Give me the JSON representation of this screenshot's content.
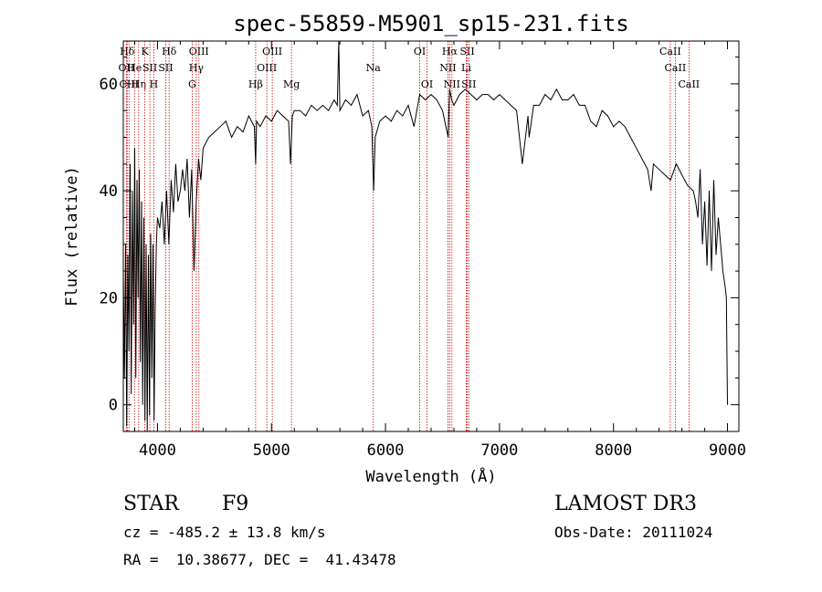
{
  "chart_data": {
    "type": "line",
    "title": "spec-55859-M5901_sp15-231.fits",
    "xlabel": "Wavelength (Å)",
    "ylabel": "Flux (relative)",
    "xlim": [
      3700,
      9100
    ],
    "ylim": [
      -5,
      68
    ],
    "xticks": [
      4000,
      5000,
      6000,
      7000,
      8000,
      9000
    ],
    "yticks": [
      0,
      20,
      40,
      60
    ],
    "series": [
      {
        "x": [
          3700,
          3710,
          3720,
          3730,
          3740,
          3750,
          3760,
          3770,
          3780,
          3790,
          3800,
          3810,
          3820,
          3830,
          3840,
          3850,
          3860,
          3870,
          3880,
          3890,
          3900,
          3910,
          3920,
          3930,
          3940,
          3950,
          3960,
          3970,
          3980,
          3990,
          4000,
          4020,
          4040,
          4060,
          4080,
          4100,
          4120,
          4140,
          4160,
          4180,
          4200,
          4220,
          4240,
          4260,
          4280,
          4300,
          4320,
          4340,
          4360,
          4380,
          4400,
          4450,
          4500,
          4550,
          4600,
          4650,
          4700,
          4750,
          4800,
          4850,
          4861,
          4870,
          4900,
          4950,
          5000,
          5050,
          5100,
          5150,
          5167,
          5183,
          5200,
          5250,
          5300,
          5350,
          5400,
          5450,
          5500,
          5550,
          5577,
          5590,
          5600,
          5650,
          5700,
          5750,
          5800,
          5850,
          5880,
          5890,
          5896,
          5910,
          5950,
          6000,
          6050,
          6100,
          6150,
          6200,
          6250,
          6300,
          6350,
          6400,
          6450,
          6500,
          6550,
          6563,
          6580,
          6600,
          6650,
          6700,
          6750,
          6800,
          6850,
          6900,
          6950,
          7000,
          7050,
          7100,
          7150,
          7200,
          7250,
          7260,
          7300,
          7350,
          7400,
          7450,
          7500,
          7550,
          7600,
          7650,
          7700,
          7750,
          7800,
          7850,
          7900,
          7950,
          8000,
          8050,
          8100,
          8150,
          8200,
          8250,
          8300,
          8330,
          8350,
          8400,
          8450,
          8500,
          8550,
          8600,
          8650,
          8700,
          8720,
          8740,
          8760,
          8780,
          8800,
          8820,
          8840,
          8860,
          8880,
          8900,
          8920,
          8940,
          8960,
          8980,
          8990,
          9000
        ],
        "y": [
          25,
          5,
          30,
          -4,
          28,
          10,
          45,
          2,
          40,
          15,
          48,
          5,
          42,
          20,
          44,
          8,
          38,
          0,
          35,
          -3,
          30,
          -5,
          28,
          -2,
          32,
          5,
          30,
          -3,
          18,
          30,
          35,
          33,
          38,
          30,
          40,
          30,
          42,
          36,
          45,
          38,
          40,
          44,
          40,
          46,
          35,
          44,
          25,
          38,
          46,
          42,
          48,
          50,
          51,
          52,
          53,
          50,
          52,
          51,
          54,
          52,
          45,
          53,
          52,
          54,
          53,
          55,
          54,
          53,
          45,
          54,
          55,
          55,
          54,
          56,
          55,
          56,
          55,
          57,
          56,
          68,
          55,
          57,
          56,
          58,
          54,
          55,
          52,
          45,
          40,
          50,
          53,
          54,
          53,
          55,
          54,
          56,
          52,
          58,
          57,
          58,
          57,
          55,
          50,
          59,
          57,
          56,
          58,
          59,
          58,
          57,
          58,
          58,
          57,
          58,
          57,
          56,
          55,
          45,
          54,
          50,
          56,
          56,
          58,
          57,
          59,
          57,
          57,
          58,
          56,
          56,
          53,
          52,
          55,
          54,
          52,
          53,
          52,
          50,
          48,
          46,
          44,
          40,
          45,
          44,
          43,
          42,
          45,
          43,
          41,
          40,
          38,
          35,
          44,
          30,
          38,
          26,
          40,
          25,
          42,
          28,
          35,
          30,
          25,
          22,
          20,
          0
        ]
      }
    ],
    "line_markers": [
      {
        "label": "Hδ",
        "x": 3734,
        "row": 0
      },
      {
        "label": "OII",
        "x": 3727,
        "row": 1
      },
      {
        "label": "CIII",
        "x": 3750,
        "row": 2
      },
      {
        "label": "He",
        "x": 3798,
        "row": 1
      },
      {
        "label": "Hη",
        "x": 3835,
        "row": 2
      },
      {
        "label": "K",
        "x": 3889,
        "row": 0
      },
      {
        "label": "SII",
        "x": 3933,
        "row": 1
      },
      {
        "label": "H",
        "x": 3968,
        "row": 2
      },
      {
        "label": "Hδ",
        "x": 4102,
        "row": 0
      },
      {
        "label": "SII",
        "x": 4072,
        "row": 1
      },
      {
        "label": "OIII",
        "x": 4363,
        "row": 0
      },
      {
        "label": "Hγ",
        "x": 4340,
        "row": 1
      },
      {
        "label": "G",
        "x": 4304,
        "row": 2
      },
      {
        "label": "Hβ",
        "x": 4861,
        "row": 2
      },
      {
        "label": "OIII",
        "x": 5007,
        "row": 0
      },
      {
        "label": "OIII",
        "x": 4959,
        "row": 1
      },
      {
        "label": "Mg",
        "x": 5175,
        "row": 2
      },
      {
        "label": "Na",
        "x": 5893,
        "row": 1
      },
      {
        "label": "OI",
        "x": 6300,
        "row": 0
      },
      {
        "label": "OI",
        "x": 6364,
        "row": 2
      },
      {
        "label": "Hα",
        "x": 6563,
        "row": 0
      },
      {
        "label": "NII",
        "x": 6548,
        "row": 1
      },
      {
        "label": "NII",
        "x": 6583,
        "row": 2
      },
      {
        "label": "SII",
        "x": 6717,
        "row": 0
      },
      {
        "label": "Li",
        "x": 6708,
        "row": 1
      },
      {
        "label": "SII",
        "x": 6731,
        "row": 2
      },
      {
        "label": "CaII",
        "x": 8498,
        "row": 0
      },
      {
        "label": "CaII",
        "x": 8542,
        "row": 1
      },
      {
        "label": "CaII",
        "x": 8662,
        "row": 2
      }
    ],
    "marker_color": "#cc0000",
    "line_color": "#000000"
  },
  "info": {
    "object_class": "STAR",
    "subclass": "F9",
    "survey": "LAMOST DR3",
    "cz": "cz = -485.2 ± 13.8 km/s",
    "obs_date": "Obs-Date: 20111024",
    "radec": "RA =  10.38677, DEC =  41.43478"
  }
}
